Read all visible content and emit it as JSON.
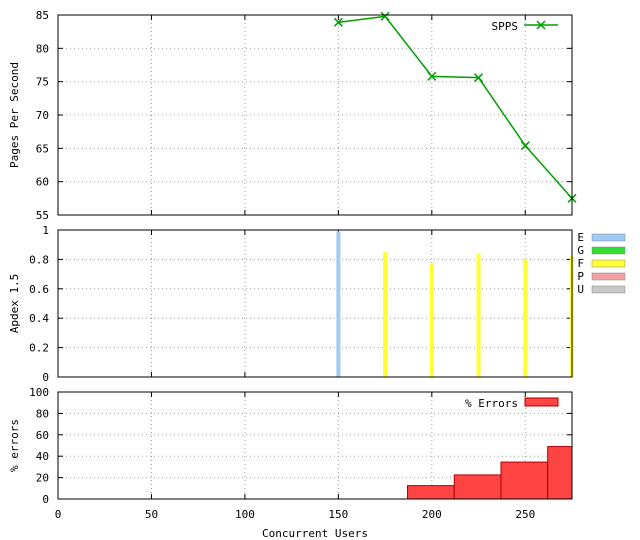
{
  "chart_data": [
    {
      "type": "line",
      "ylabel": "Pages Per Second",
      "xlabel": "",
      "xlim": [
        0,
        275
      ],
      "ylim": [
        55,
        85
      ],
      "yticks": [
        "55",
        "60",
        "65",
        "70",
        "75",
        "80",
        "85"
      ],
      "xticks": [],
      "grid": true,
      "legend_position": "top-right",
      "series": [
        {
          "name": "SPPS",
          "color": "#00a000",
          "marker": "x",
          "x": [
            150,
            175,
            200,
            225,
            250,
            275
          ],
          "y": [
            83.9,
            84.8,
            75.8,
            75.6,
            65.4,
            57.5
          ]
        }
      ]
    },
    {
      "type": "bar",
      "ylabel": "Apdex 1.5",
      "xlim": [
        0,
        275
      ],
      "ylim": [
        0,
        1
      ],
      "yticks": [
        "0",
        "0.2",
        "0.4",
        "0.6",
        "0.8",
        "1"
      ],
      "grid": true,
      "legend_position": "right",
      "legend": [
        {
          "label": "E",
          "color": "#9fcbf5"
        },
        {
          "label": "G",
          "color": "#33dd33"
        },
        {
          "label": "F",
          "color": "#ffff33"
        },
        {
          "label": "P",
          "color": "#f5a0a0"
        },
        {
          "label": "U",
          "color": "#c8c8c8"
        }
      ],
      "bars": [
        {
          "x": 150,
          "value": 0.99,
          "category": "E"
        },
        {
          "x": 175,
          "value": 0.85,
          "category": "F"
        },
        {
          "x": 200,
          "value": 0.77,
          "category": "F"
        },
        {
          "x": 225,
          "value": 0.84,
          "category": "F"
        },
        {
          "x": 250,
          "value": 0.8,
          "category": "F"
        },
        {
          "x": 275,
          "value": 0.82,
          "category": "F"
        }
      ]
    },
    {
      "type": "bar",
      "ylabel": "% errors",
      "xlabel": "Concurrent Users",
      "xlim": [
        0,
        275
      ],
      "ylim": [
        0,
        100
      ],
      "yticks": [
        "0",
        "20",
        "40",
        "60",
        "80",
        "100"
      ],
      "xticks": [
        "0",
        "50",
        "100",
        "150",
        "200",
        "250"
      ],
      "grid": true,
      "legend_position": "top-right",
      "series": [
        {
          "name": "% Errors",
          "color": "#ff4444",
          "x": [
            200,
            225,
            250,
            275
          ],
          "values": [
            12.5,
            22.5,
            34.5,
            49.0
          ]
        }
      ]
    }
  ]
}
